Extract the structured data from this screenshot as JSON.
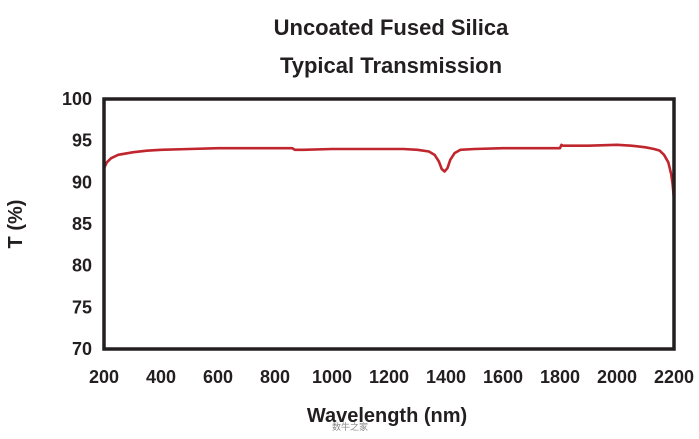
{
  "chart_data": {
    "type": "line",
    "title": "Uncoated Fused Silica",
    "subtitle": "Typical Transmission",
    "xlabel": "Wavelength (nm)",
    "ylabel": "T (%)",
    "xlim": [
      200,
      2200
    ],
    "ylim": [
      70,
      100
    ],
    "xticks": [
      "200",
      "400",
      "600",
      "800",
      "1000",
      "1200",
      "1400",
      "1600",
      "1800",
      "2000",
      "2200"
    ],
    "yticks": [
      "70",
      "75",
      "80",
      "85",
      "90",
      "95",
      "100"
    ],
    "grid": false,
    "line_color": "#c0262d",
    "axis_color": "#231f20",
    "x": [
      200,
      210,
      225,
      250,
      300,
      350,
      400,
      500,
      600,
      700,
      800,
      860,
      870,
      900,
      1000,
      1100,
      1200,
      1250,
      1300,
      1340,
      1360,
      1375,
      1385,
      1395,
      1405,
      1415,
      1430,
      1450,
      1500,
      1600,
      1700,
      1800,
      1805,
      1810,
      1900,
      2000,
      2050,
      2100,
      2130,
      2150,
      2165,
      2180,
      2190,
      2195,
      2200
    ],
    "y": [
      91.7,
      92.4,
      92.9,
      93.3,
      93.6,
      93.8,
      93.9,
      94.0,
      94.1,
      94.1,
      94.1,
      94.1,
      93.9,
      93.9,
      94.0,
      94.0,
      94.0,
      94.0,
      93.9,
      93.7,
      93.3,
      92.5,
      91.6,
      91.3,
      91.7,
      92.7,
      93.5,
      93.9,
      94.0,
      94.1,
      94.1,
      94.1,
      94.5,
      94.4,
      94.4,
      94.5,
      94.4,
      94.2,
      94.0,
      93.8,
      93.3,
      92.4,
      91.0,
      89.8,
      88.0
    ]
  },
  "watermark": "数牛之家"
}
